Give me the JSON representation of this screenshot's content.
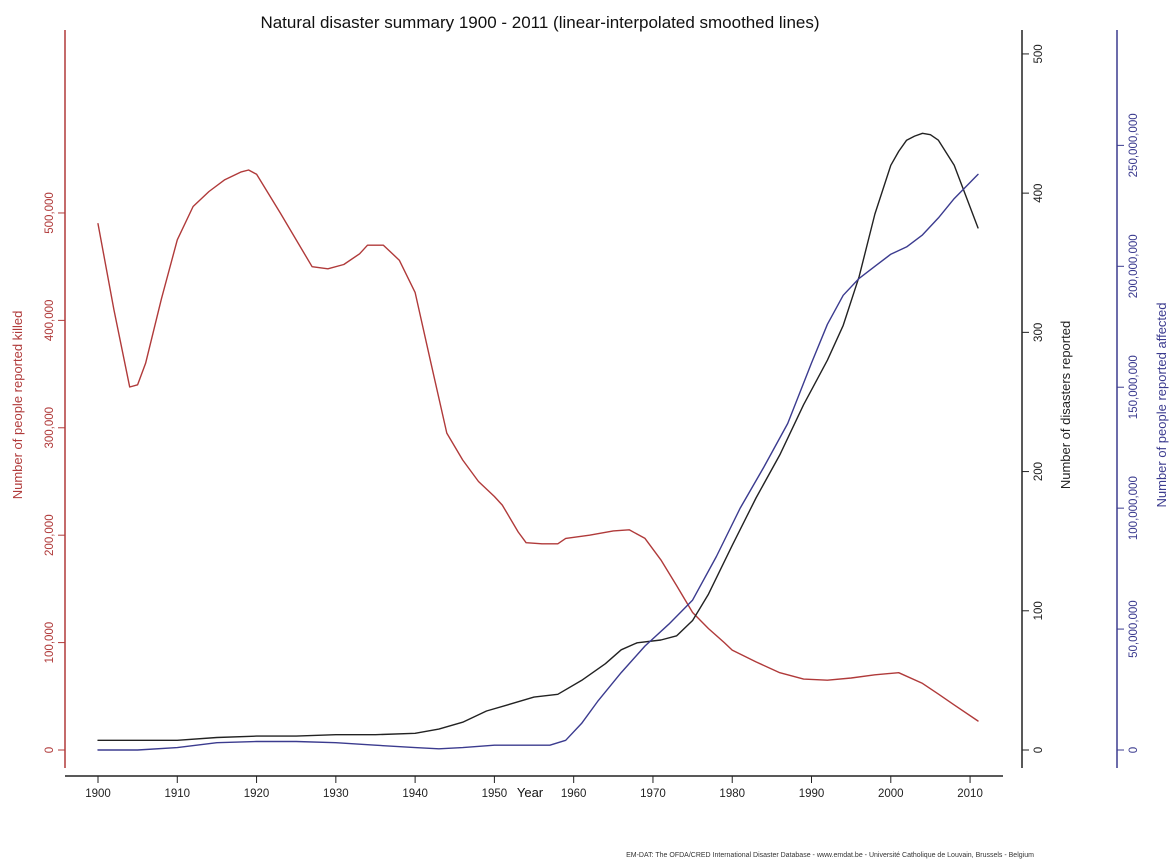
{
  "chart_data": {
    "type": "line",
    "title": "Natural disaster summary 1900 - 2011 (linear-interpolated smoothed lines)",
    "xlabel": "Year",
    "x_ticks": [
      1900,
      1910,
      1920,
      1930,
      1940,
      1950,
      1960,
      1970,
      1980,
      1990,
      2000,
      2010
    ],
    "xlim": [
      1900,
      2011
    ],
    "axes": {
      "left": {
        "label": "Number of people reported killed",
        "color": "#b03a3a",
        "ylim": [
          0,
          540000
        ],
        "ticks": [
          0,
          100000,
          200000,
          300000,
          400000,
          500000
        ],
        "tick_labels": [
          "0",
          "100,000",
          "200,000",
          "300,000",
          "400,000",
          "500,000"
        ]
      },
      "right_inner": {
        "label": "Number of disasters reported",
        "color": "#222222",
        "ylim": [
          0,
          510
        ],
        "ticks": [
          0,
          100,
          200,
          300,
          400,
          500
        ],
        "tick_labels": [
          "0",
          "100",
          "200",
          "300",
          "400",
          "500"
        ]
      },
      "right_outer": {
        "label": "Number of people reported affected",
        "color": "#3b3b8f",
        "ylim": [
          0,
          270000000
        ],
        "ticks": [
          0,
          50000000,
          100000000,
          150000000,
          200000000,
          250000000
        ],
        "tick_labels": [
          "0",
          "50,000,000",
          "100,000,000",
          "150,000,000",
          "200,000,000",
          "250,000,000"
        ]
      }
    },
    "series": [
      {
        "axis": "left",
        "color": "#b03a3a",
        "x": [
          1900,
          1902,
          1904,
          1905,
          1906,
          1908,
          1910,
          1912,
          1914,
          1916,
          1918,
          1919,
          1920,
          1923,
          1927,
          1929,
          1931,
          1933,
          1934,
          1936,
          1938,
          1940,
          1942,
          1944,
          1946,
          1948,
          1950,
          1951,
          1953,
          1954,
          1956,
          1958,
          1959,
          1962,
          1965,
          1967,
          1969,
          1971,
          1973,
          1975,
          1977,
          1979,
          1980,
          1983,
          1986,
          1989,
          1992,
          1995,
          1998,
          2001,
          2004,
          2006,
          2008,
          2011
        ],
        "y": [
          490000,
          410000,
          338000,
          340000,
          360000,
          420000,
          475000,
          506000,
          520000,
          531000,
          538000,
          540000,
          536000,
          500000,
          450000,
          448000,
          452000,
          462000,
          470000,
          470000,
          456000,
          426000,
          360000,
          295000,
          270000,
          250000,
          236000,
          228000,
          203000,
          193000,
          192000,
          192000,
          197000,
          200000,
          204000,
          205000,
          197000,
          177000,
          153000,
          128000,
          113000,
          100000,
          93000,
          82000,
          72000,
          66000,
          65000,
          67000,
          70000,
          72000,
          62000,
          52000,
          42000,
          27000
        ]
      },
      {
        "axis": "right_inner",
        "color": "#222222",
        "x": [
          1900,
          1905,
          1910,
          1915,
          1920,
          1925,
          1930,
          1935,
          1940,
          1943,
          1946,
          1949,
          1952,
          1955,
          1958,
          1961,
          1964,
          1966,
          1968,
          1971,
          1973,
          1975,
          1977,
          1980,
          1983,
          1986,
          1989,
          1992,
          1994,
          1996,
          1998,
          2000,
          2001,
          2002,
          2003,
          2004,
          2005,
          2006,
          2008,
          2011
        ],
        "y": [
          7,
          7,
          7,
          9,
          10,
          10,
          11,
          11,
          12,
          15,
          20,
          28,
          33,
          38,
          40,
          50,
          62,
          72,
          77,
          79,
          82,
          93,
          112,
          147,
          181,
          212,
          248,
          280,
          305,
          340,
          385,
          420,
          430,
          438,
          441,
          443,
          442,
          438,
          420,
          375
        ]
      },
      {
        "axis": "right_outer",
        "color": "#3b3b8f",
        "x": [
          1900,
          1905,
          1910,
          1915,
          1920,
          1925,
          1930,
          1935,
          1940,
          1943,
          1946,
          1950,
          1955,
          1957,
          1959,
          1961,
          1963,
          1966,
          1969,
          1972,
          1975,
          1978,
          1981,
          1984,
          1987,
          1990,
          1992,
          1994,
          1996,
          1998,
          2000,
          2002,
          2004,
          2006,
          2008,
          2011
        ],
        "y": [
          0,
          0,
          1000000,
          3000000,
          3500000,
          3500000,
          3000000,
          2000000,
          1000000,
          500000,
          1000000,
          2000000,
          2000000,
          2000000,
          4000000,
          11000000,
          20000000,
          32000000,
          43000000,
          52000000,
          62000000,
          80000000,
          100000000,
          117000000,
          135000000,
          160000000,
          176000000,
          188000000,
          195000000,
          200000000,
          205000000,
          208000000,
          213000000,
          220000000,
          228000000,
          238000000
        ]
      }
    ],
    "footer": "EM-DAT: The OFDA/CRED International Disaster Database - www.emdat.be - Université Catholique de Louvain, Brussels - Belgium"
  }
}
